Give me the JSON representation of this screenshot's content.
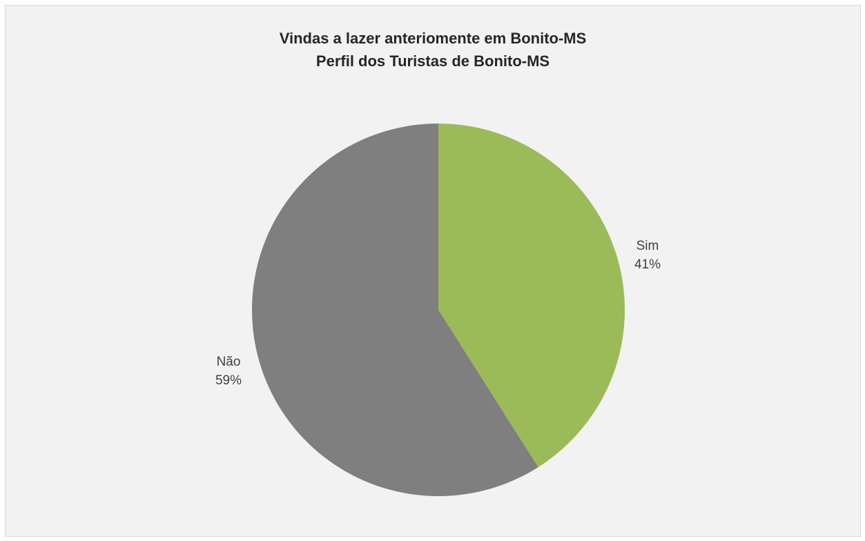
{
  "chart_data": {
    "type": "pie",
    "title": "Vindas a lazer anteriomente em Bonito-MS",
    "subtitle": "Perfil dos Turistas de Bonito-MS",
    "slices": [
      {
        "label": "Sim",
        "value": 41,
        "value_label": "41%",
        "color": "#9bbb59"
      },
      {
        "label": "Não",
        "value": 59,
        "value_label": "59%",
        "color": "#7f7f7f"
      }
    ],
    "legend": "none",
    "data_labels": "outside"
  }
}
